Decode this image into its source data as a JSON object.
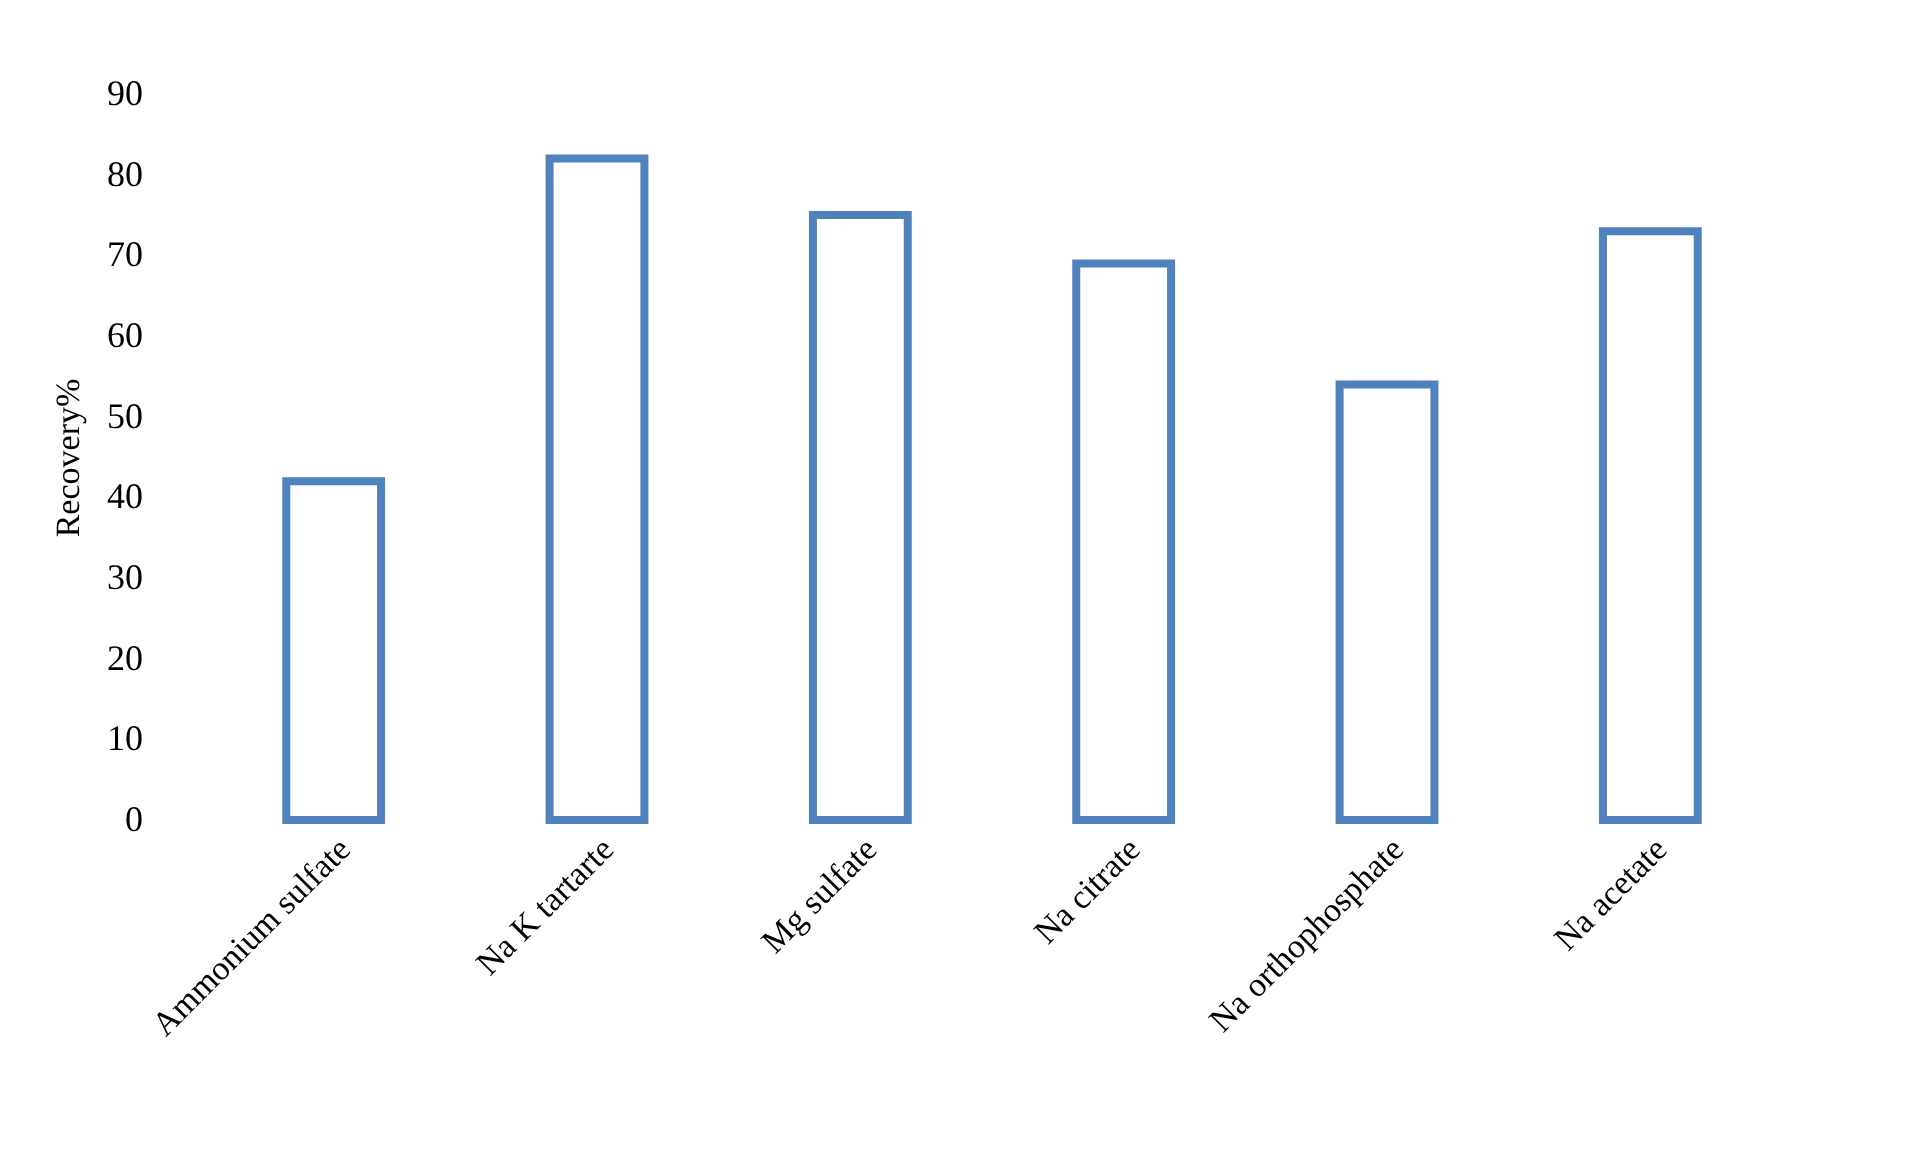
{
  "chart_data": {
    "type": "bar",
    "ylabel": "Recovery%",
    "categories": [
      "Ammonium sulfate",
      "Na K tartarte",
      "Mg sulfate",
      "Na citrate",
      "Na orthophosphate",
      "Na acetate"
    ],
    "values": [
      42,
      82,
      75,
      69,
      54,
      73
    ],
    "color": "#4f81bd",
    "ylim": [
      0,
      90
    ],
    "yticks": [
      0,
      10,
      20,
      30,
      40,
      50,
      60,
      70,
      80,
      90
    ],
    "grid": false
  }
}
